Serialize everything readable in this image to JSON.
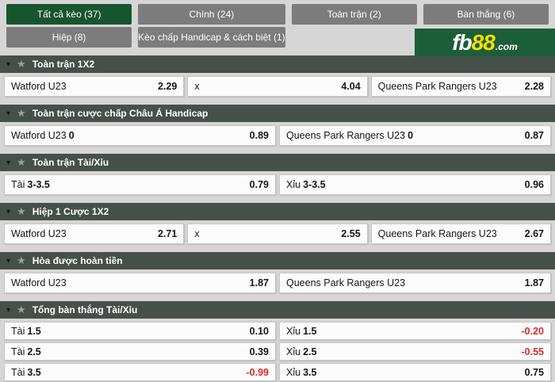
{
  "colors": {
    "page_bg": "#d6d6d6",
    "active_tab": "#17552f",
    "tab_bg": "#7c7c7c",
    "logo_green": "#1c5e38",
    "logo_yellow": "#f5df00",
    "header_bg": "#46504a",
    "negative_odds": "#d92b2b"
  },
  "tabs": [
    {
      "label": "Tất cả kèo (37)",
      "active": true
    },
    {
      "label": "Chính (24)",
      "active": false
    },
    {
      "label": "Toàn trận (2)",
      "active": false
    },
    {
      "label": "Bàn thắng (6)",
      "active": false
    },
    {
      "label": "Hiệp (8)",
      "active": false
    },
    {
      "label": "Kèo chấp Handicap & cách biệt (1)",
      "active": false
    }
  ],
  "logo": {
    "fb": "fb",
    "eight_eight": "88",
    "dot_com": ".com"
  },
  "icons": {
    "collapse": "▾",
    "favorite": "★"
  },
  "sections": [
    {
      "title": "Toàn trận 1X2",
      "rows": [
        {
          "cells": [
            {
              "name": "Watford U23",
              "odds": "2.29"
            },
            {
              "name": "x",
              "odds": "4.04"
            },
            {
              "name": "Queens Park Rangers U23",
              "odds": "2.28"
            }
          ]
        }
      ]
    },
    {
      "title": "Toàn trận cược chấp Châu Á Handicap",
      "rows": [
        {
          "cells": [
            {
              "name": "Watford U23",
              "line": "0",
              "odds": "0.89"
            },
            {
              "name": "Queens Park Rangers U23",
              "line": "0",
              "odds": "0.87"
            }
          ]
        }
      ]
    },
    {
      "title": "Toàn trận Tài/Xỉu",
      "rows": [
        {
          "cells": [
            {
              "name": "Tài",
              "line": "3-3.5",
              "odds": "0.79"
            },
            {
              "name": "Xỉu",
              "line": "3-3.5",
              "odds": "0.96"
            }
          ]
        }
      ]
    },
    {
      "title": "Hiệp 1 Cược 1X2",
      "rows": [
        {
          "cells": [
            {
              "name": "Watford U23",
              "odds": "2.71"
            },
            {
              "name": "x",
              "odds": "2.55"
            },
            {
              "name": "Queens Park Rangers U23",
              "odds": "2.67"
            }
          ]
        }
      ]
    },
    {
      "title": "Hòa được hoàn tiền",
      "rows": [
        {
          "cells": [
            {
              "name": "Watford U23",
              "odds": "1.87"
            },
            {
              "name": "Queens Park Rangers U23",
              "odds": "1.87"
            }
          ]
        }
      ]
    },
    {
      "title": "Tổng bàn thắng Tài/Xỉu",
      "rows": [
        {
          "cells": [
            {
              "name": "Tài",
              "line": "1.5",
              "odds": "0.10"
            },
            {
              "name": "Xỉu",
              "line": "1.5",
              "odds": "-0.20",
              "odds_style": "color:#d92b2b"
            }
          ]
        },
        {
          "cells": [
            {
              "name": "Tài",
              "line": "2.5",
              "odds": "0.39"
            },
            {
              "name": "Xỉu",
              "line": "2.5",
              "odds": "-0.55",
              "odds_style": "color:#d92b2b"
            }
          ]
        },
        {
          "cells": [
            {
              "name": "Tài",
              "line": "3.5",
              "odds": "-0.99",
              "odds_style": "color:#d92b2b"
            },
            {
              "name": "Xỉu",
              "line": "3.5",
              "odds": "0.75"
            }
          ]
        }
      ]
    }
  ]
}
